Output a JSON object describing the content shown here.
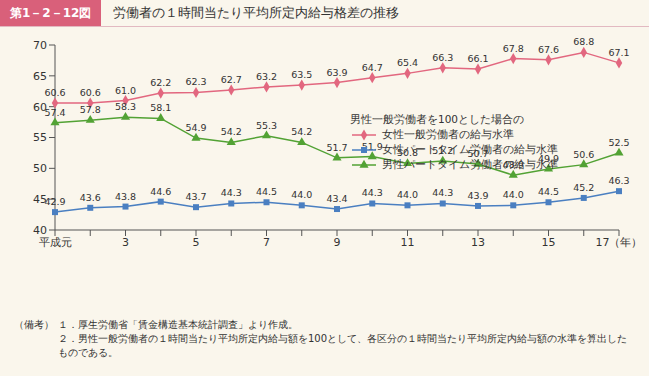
{
  "chart_data": {
    "type": "line",
    "figure_number": "第1－2－12図",
    "title": "労働者の１時間当たり平均所定内給与格差の推移",
    "categories": [
      "平成元",
      null,
      "3",
      null,
      "5",
      null,
      "7",
      null,
      "9",
      null,
      "11",
      null,
      "13",
      null,
      "15",
      null,
      "17（年）"
    ],
    "ylim": [
      40,
      70
    ],
    "yticks": [
      40,
      45,
      50,
      55,
      60,
      65,
      70
    ],
    "grid": false,
    "data_labels": true,
    "legend": "right",
    "legend_title": "男性一般労働者を100とした場合の",
    "series": [
      {
        "name": "女性一般労働者の給与水準",
        "color": "#e2677f",
        "marker": "diamond",
        "values": [
          60.6,
          60.6,
          61.0,
          62.2,
          62.3,
          62.7,
          63.2,
          63.5,
          63.9,
          64.7,
          65.4,
          66.3,
          66.1,
          67.8,
          67.6,
          68.8,
          67.1
        ],
        "value_labels": [
          "60.6",
          "60.6",
          "61.0",
          "62.2",
          "62.3",
          "62.7",
          "63.2",
          "63.5",
          "63.9",
          "64.7",
          "65.4",
          "66.3",
          "66.1",
          "67.8",
          "67.6",
          "68.8",
          "67.1"
        ]
      },
      {
        "name": "女性パートタイム労働者の給与水準",
        "color": "#4a7fc1",
        "marker": "square",
        "values": [
          42.9,
          43.6,
          43.8,
          44.6,
          43.7,
          44.3,
          44.5,
          44.0,
          43.4,
          44.3,
          44.0,
          44.3,
          43.9,
          44.0,
          44.5,
          45.2,
          46.3
        ],
        "value_labels": [
          "42.9",
          "43.6",
          "43.8",
          "44.6",
          "43.7",
          "44.3",
          "44.5",
          "44.0",
          "43.4",
          "44.3",
          "44.0",
          "44.3",
          "43.9",
          "44.0",
          "44.5",
          "45.2",
          "46.3"
        ]
      },
      {
        "name": "男性パートタイム労働者の給与水準",
        "color": "#52a234",
        "marker": "triangle",
        "values": [
          57.4,
          57.8,
          58.3,
          58.1,
          54.9,
          54.2,
          55.3,
          54.2,
          51.7,
          51.9,
          50.8,
          51.2,
          50.7,
          48.9,
          49.9,
          50.6,
          52.5
        ],
        "value_labels": [
          "57.4",
          "57.8",
          "58.3",
          "58.1",
          "54.9",
          "54.2",
          "55.3",
          "54.2",
          "51.7",
          "51.9",
          "50.8",
          "51.2",
          "50.7",
          "48.9",
          "49.9",
          "50.6",
          "52.5"
        ]
      }
    ],
    "notes": {
      "label": "（備考）",
      "items": [
        "１．厚生労働省「賃金構造基本統計調査」より作成。",
        "２．男性一般労働者の１時間当たり平均所定内給与額を100として、各区分の１時間当たり平均所定内給与額の水準を算出したものである。"
      ]
    }
  }
}
